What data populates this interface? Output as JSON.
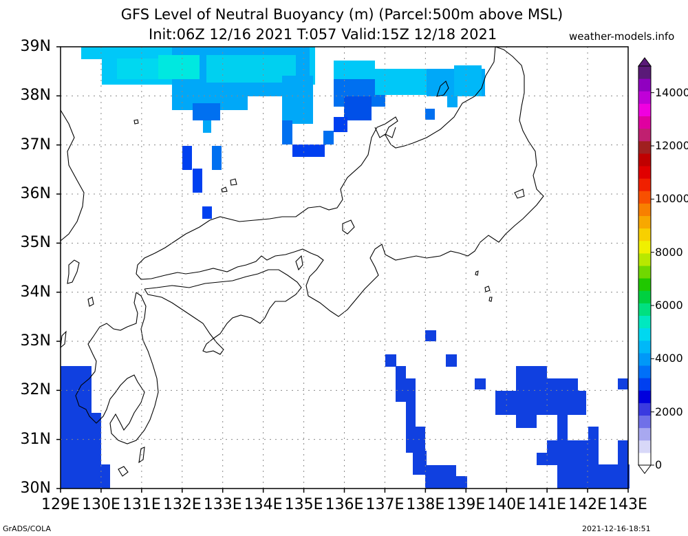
{
  "title": {
    "line1": "GFS Level of Neutral Buoyancy (m) (Parcel:500m above MSL)",
    "line2": "Init:06Z 12/16 2021 T:057 Valid:15Z 12/18 2021"
  },
  "site": "weather-models.info",
  "map": {
    "lat_labels": [
      "39N",
      "38N",
      "37N",
      "36N",
      "35N",
      "34N",
      "33N",
      "32N",
      "31N",
      "30N"
    ],
    "lon_labels": [
      "129E",
      "130E",
      "131E",
      "132E",
      "133E",
      "134E",
      "135E",
      "136E",
      "137E",
      "138E",
      "139E",
      "140E",
      "141E",
      "142E",
      "143E"
    ],
    "lat_range": [
      30,
      39
    ],
    "lon_range": [
      129,
      143
    ],
    "grid": "dotted"
  },
  "colorbar": {
    "labels": [
      "14000",
      "12000",
      "10000",
      "8000",
      "6000",
      "4000",
      "2000",
      "0"
    ],
    "range": [
      0,
      15000
    ],
    "colors": [
      "#ffffff",
      "#d8d8f8",
      "#a8a8f0",
      "#7070e8",
      "#3a3ae0",
      "#0000dd",
      "#0040f0",
      "#0070f8",
      "#0098f8",
      "#00b8f8",
      "#00d8f0",
      "#00e8c0",
      "#00e080",
      "#00d040",
      "#20c800",
      "#70d800",
      "#b8e800",
      "#f0f000",
      "#f8d000",
      "#f8a800",
      "#f88000",
      "#f85000",
      "#f02000",
      "#e00000",
      "#c00000",
      "#a02020",
      "#c02070",
      "#e000a0",
      "#f000e0",
      "#c000d8",
      "#9000c0",
      "#5a1a78"
    ]
  },
  "footer": {
    "left": "GrADS/COLA",
    "right": "2021-12-16-18:51"
  }
}
